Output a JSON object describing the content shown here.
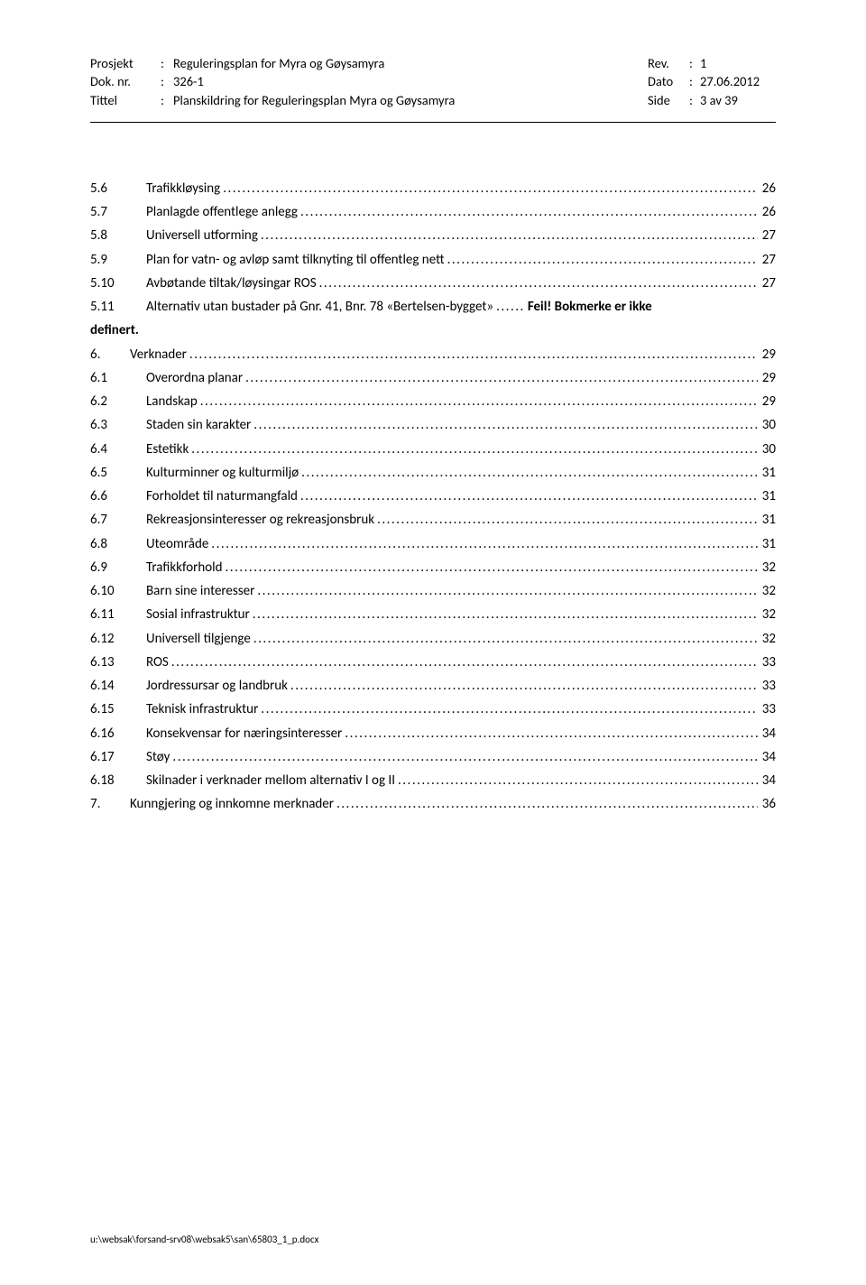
{
  "header": {
    "rows": [
      {
        "label": "Prosjekt",
        "colon": ":",
        "value": "Reguleringsplan for Myra og Gøysamyra",
        "rightLabel": "Rev.",
        "rightColon": ":",
        "rightValue": "1"
      },
      {
        "label": "Dok. nr.",
        "colon": ":",
        "value": "326-1",
        "rightLabel": "Dato",
        "rightColon": ":",
        "rightValue": "27.06.2012"
      },
      {
        "label": "Tittel",
        "colon": ":",
        "value": "Planskildring for Reguleringsplan Myra og Gøysamyra",
        "rightLabel": "Side",
        "rightColon": ":",
        "rightValue": "3 av 39"
      }
    ]
  },
  "toc": {
    "entries": [
      {
        "type": "sub",
        "num": "5.6",
        "title": "Trafikkløysing",
        "page": "26"
      },
      {
        "type": "sub",
        "num": "5.7",
        "title": "Planlagde offentlege anlegg",
        "page": "26"
      },
      {
        "type": "sub",
        "num": "5.8",
        "title": "Universell utforming",
        "page": "27"
      },
      {
        "type": "sub",
        "num": "5.9",
        "title": "Plan for vatn- og avløp samt tilknyting til offentleg nett",
        "page": "27"
      },
      {
        "type": "sub",
        "num": "5.10",
        "title": "Avbøtande tiltak/løysingar ROS",
        "page": "27"
      },
      {
        "type": "special",
        "num": "5.11",
        "title": "Alternativ utan bustader på Gnr. 41, Bnr. 78 «Bertelsen-bygget»",
        "page": "Feil! Bokmerke er ikke"
      },
      {
        "type": "definert",
        "text": "definert."
      },
      {
        "type": "main",
        "num": "6.",
        "title": "Verknader",
        "page": "29"
      },
      {
        "type": "sub",
        "num": "6.1",
        "title": "Overordna planar",
        "page": "29"
      },
      {
        "type": "sub",
        "num": "6.2",
        "title": "Landskap",
        "page": "29"
      },
      {
        "type": "sub",
        "num": "6.3",
        "title": "Staden sin karakter",
        "page": "30"
      },
      {
        "type": "sub",
        "num": "6.4",
        "title": "Estetikk",
        "page": "30"
      },
      {
        "type": "sub",
        "num": "6.5",
        "title": "Kulturminner og kulturmiljø",
        "page": "31"
      },
      {
        "type": "sub",
        "num": "6.6",
        "title": "Forholdet til naturmangfald",
        "page": "31"
      },
      {
        "type": "sub",
        "num": "6.7",
        "title": "Rekreasjonsinteresser og rekreasjonsbruk",
        "page": "31"
      },
      {
        "type": "sub",
        "num": "6.8",
        "title": "Uteområde",
        "page": "31"
      },
      {
        "type": "sub",
        "num": "6.9",
        "title": "Trafikkforhold",
        "page": "32"
      },
      {
        "type": "sub",
        "num": "6.10",
        "title": "Barn sine interesser",
        "page": "32"
      },
      {
        "type": "sub",
        "num": "6.11",
        "title": "Sosial infrastruktur",
        "page": "32"
      },
      {
        "type": "sub",
        "num": "6.12",
        "title": "Universell tilgjenge",
        "page": "32"
      },
      {
        "type": "sub",
        "num": "6.13",
        "title": "ROS",
        "page": "33"
      },
      {
        "type": "sub",
        "num": "6.14",
        "title": "Jordressursar og landbruk",
        "page": "33"
      },
      {
        "type": "sub",
        "num": "6.15",
        "title": "Teknisk infrastruktur",
        "page": "33"
      },
      {
        "type": "sub",
        "num": "6.16",
        "title": "Konsekvensar for næringsinteresser",
        "page": "34"
      },
      {
        "type": "sub",
        "num": "6.17",
        "title": "Støy",
        "page": "34"
      },
      {
        "type": "sub",
        "num": "6.18",
        "title": "Skilnader i verknader mellom alternativ I og II",
        "page": "34"
      },
      {
        "type": "main",
        "num": "7.",
        "title": "Kunngjering og innkomne merknader",
        "page": "36"
      }
    ]
  },
  "footer": {
    "path": "u:\\websak\\forsand-srv08\\websak5\\san\\65803_1_p.docx"
  },
  "dots": ".............................................................................................................................................................................."
}
